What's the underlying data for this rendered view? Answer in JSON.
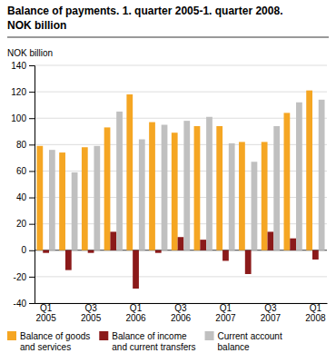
{
  "chart_data": {
    "type": "bar",
    "title": "Balance of payments. 1. quarter 2005-1. quarter 2008.",
    "subtitle": "NOK billion",
    "ylabel": "NOK billion",
    "categories": [
      "Q1\n2005",
      null,
      "Q3\n2005",
      null,
      "Q1\n2006",
      null,
      "Q3\n2006",
      null,
      "Q1\n2007",
      null,
      "Q3\n2007",
      null,
      "Q1\n2008"
    ],
    "series": [
      {
        "name": "Balance of goods\nand services",
        "color": "#F5A623",
        "values": [
          79,
          74,
          78,
          93,
          118,
          97,
          89,
          94,
          94,
          82,
          82,
          104,
          121
        ]
      },
      {
        "name": "Balance of income\nand current transfers",
        "color": "#8B1A1A",
        "values": [
          -2,
          -15,
          -2,
          14,
          -29,
          -2,
          10,
          8,
          -8,
          -18,
          14,
          9,
          -7
        ]
      },
      {
        "name": "Current account\nbalance",
        "color": "#C0C0C0",
        "values": [
          76,
          59,
          79,
          105,
          84,
          95,
          98,
          101,
          81,
          67,
          94,
          112,
          114
        ]
      }
    ],
    "ylim": [
      -40,
      140
    ],
    "yticks": [
      -40,
      -20,
      0,
      20,
      40,
      60,
      80,
      100,
      120,
      140
    ],
    "grid": true,
    "legend": "bottom"
  }
}
